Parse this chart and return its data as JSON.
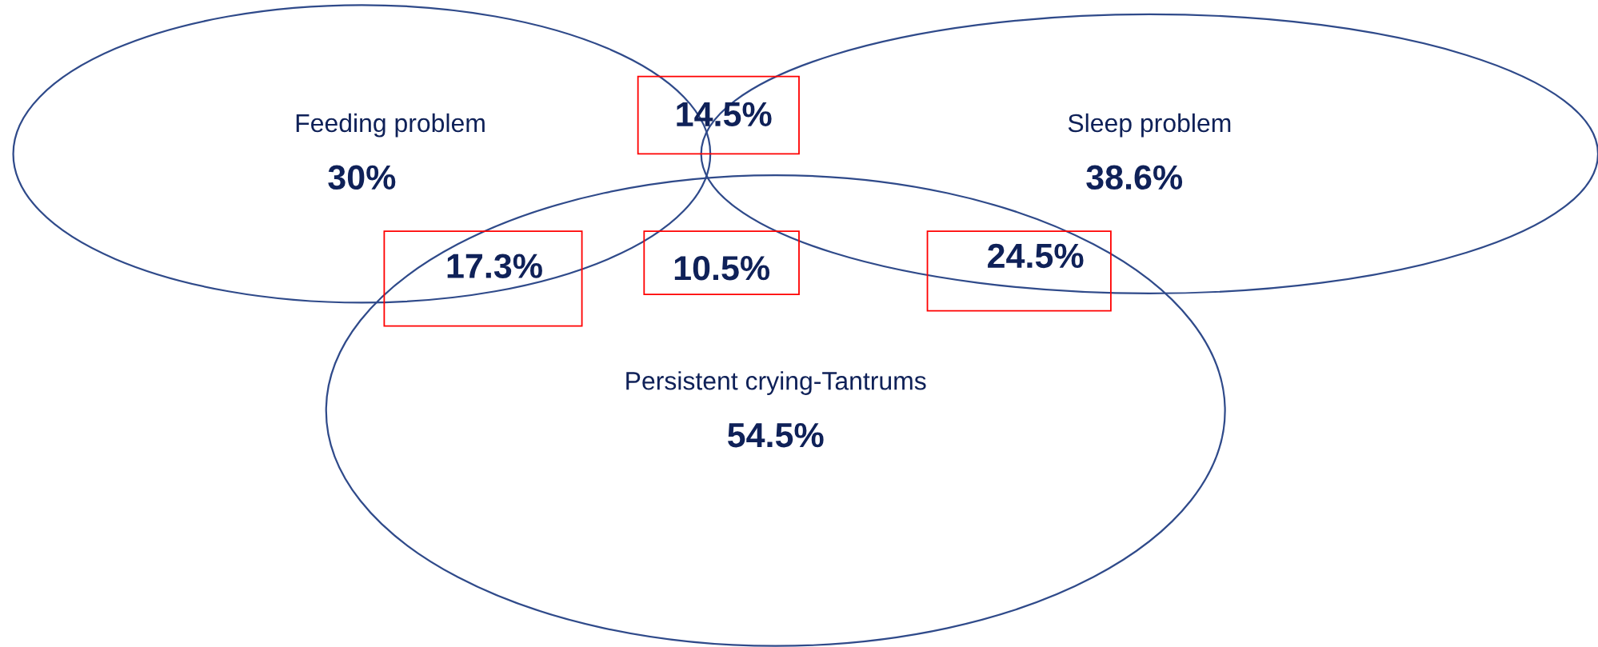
{
  "chart_data": {
    "type": "other",
    "categories": [
      "Feeding problem",
      "Sleep problem",
      "Persistent crying-Tantrums"
    ],
    "values": [
      30,
      38.6,
      54.5
    ],
    "value_labels": [
      "30%",
      "38.6%",
      "54.5%"
    ],
    "annotations": [
      "14.5%",
      "17.3%",
      "24.5%",
      "10.5%"
    ],
    "color": "#2f4a8a",
    "data_labels": true
  }
}
